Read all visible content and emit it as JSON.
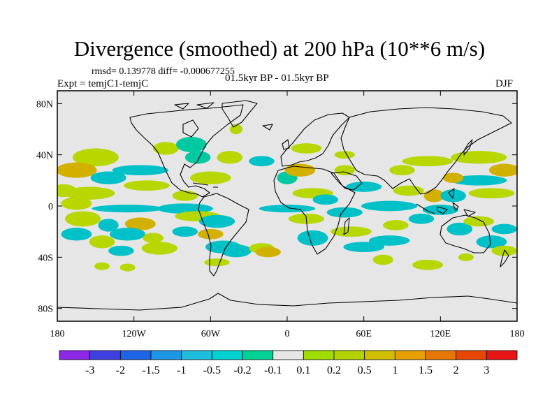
{
  "title": "Divergence (smoothed) at 200 hPa (10**6 m/s)",
  "stats": "rmsd= 0.139778  diff= -0.000677255",
  "experiment": "Expt = temjC1-temjC",
  "period": "01.5kyr BP - 01.5kyr BP",
  "season": "DJF",
  "map": {
    "projection": "cylindrical-equidistant",
    "lon_range": [
      -180,
      180
    ],
    "lat_range": [
      -90,
      90
    ],
    "background_color": "#e6e6e6",
    "lat_ticks": [
      {
        "value": 80,
        "label": "80N"
      },
      {
        "value": 40,
        "label": "40N"
      },
      {
        "value": 0,
        "label": "0"
      },
      {
        "value": -40,
        "label": "40S"
      },
      {
        "value": -80,
        "label": "80S"
      }
    ],
    "lon_ticks": [
      {
        "value": -180,
        "label": "180"
      },
      {
        "value": -120,
        "label": "120W"
      },
      {
        "value": -60,
        "label": "60W"
      },
      {
        "value": 0,
        "label": "0"
      },
      {
        "value": 60,
        "label": "60E"
      },
      {
        "value": 120,
        "label": "120E"
      },
      {
        "value": 180,
        "label": "180"
      }
    ],
    "anomalies": [
      {
        "lon": -150,
        "lat": 38,
        "rlon": 18,
        "rlat": 7,
        "color": "#b8d600"
      },
      {
        "lon": -165,
        "lat": 28,
        "rlon": 16,
        "rlat": 6,
        "color": "#d2b000"
      },
      {
        "lon": -175,
        "lat": 12,
        "rlon": 10,
        "rlat": 5,
        "color": "#b8d600"
      },
      {
        "lon": -140,
        "lat": 22,
        "rlon": 14,
        "rlat": 5,
        "color": "#00c0c8"
      },
      {
        "lon": -115,
        "lat": 28,
        "rlon": 22,
        "rlat": 4,
        "color": "#00c0c8"
      },
      {
        "lon": -155,
        "lat": 10,
        "rlon": 20,
        "rlat": 5,
        "color": "#b8d600"
      },
      {
        "lon": -110,
        "lat": 16,
        "rlon": 18,
        "rlat": 4,
        "color": "#b8d600"
      },
      {
        "lon": -165,
        "lat": 2,
        "rlon": 12,
        "rlat": 5,
        "color": "#b8d600"
      },
      {
        "lon": -125,
        "lat": -2,
        "rlon": 28,
        "rlat": 3,
        "color": "#00c0c8"
      },
      {
        "lon": -160,
        "lat": -10,
        "rlon": 14,
        "rlat": 6,
        "color": "#b8d600"
      },
      {
        "lon": -140,
        "lat": -15,
        "rlon": 8,
        "rlat": 5,
        "color": "#00c0c8"
      },
      {
        "lon": -115,
        "lat": -14,
        "rlon": 12,
        "rlat": 5,
        "color": "#d2b000"
      },
      {
        "lon": -165,
        "lat": -22,
        "rlon": 12,
        "rlat": 5,
        "color": "#00c0c8"
      },
      {
        "lon": -125,
        "lat": -22,
        "rlon": 14,
        "rlat": 5,
        "color": "#00c0c8"
      },
      {
        "lon": -145,
        "lat": -28,
        "rlon": 10,
        "rlat": 5,
        "color": "#b8d600"
      },
      {
        "lon": -105,
        "lat": -25,
        "rlon": 8,
        "rlat": 4,
        "color": "#b8d600"
      },
      {
        "lon": -130,
        "lat": -35,
        "rlon": 10,
        "rlat": 4,
        "color": "#00c0c8"
      },
      {
        "lon": -100,
        "lat": -33,
        "rlon": 14,
        "rlat": 5,
        "color": "#b8d600"
      },
      {
        "lon": -145,
        "lat": -47,
        "rlon": 6,
        "rlat": 3,
        "color": "#b8d600"
      },
      {
        "lon": -125,
        "lat": -48,
        "rlon": 6,
        "rlat": 3,
        "color": "#b8d600"
      },
      {
        "lon": -95,
        "lat": 45,
        "rlon": 10,
        "rlat": 5,
        "color": "#b8d600"
      },
      {
        "lon": -75,
        "lat": 48,
        "rlon": 12,
        "rlat": 6,
        "color": "#00c8a0"
      },
      {
        "lon": -70,
        "lat": 38,
        "rlon": 10,
        "rlat": 5,
        "color": "#00c8a0"
      },
      {
        "lon": -40,
        "lat": 60,
        "rlon": 5,
        "rlat": 4,
        "color": "#b8d600"
      },
      {
        "lon": -45,
        "lat": 38,
        "rlon": 10,
        "rlat": 5,
        "color": "#b8d600"
      },
      {
        "lon": -60,
        "lat": 22,
        "rlon": 16,
        "rlat": 5,
        "color": "#b8d600"
      },
      {
        "lon": -80,
        "lat": 8,
        "rlon": 10,
        "rlat": 4,
        "color": "#b8d600"
      },
      {
        "lon": -80,
        "lat": -2,
        "rlon": 22,
        "rlat": 4,
        "color": "#00c0c8"
      },
      {
        "lon": -70,
        "lat": -8,
        "rlon": 18,
        "rlat": 4,
        "color": "#b8d600"
      },
      {
        "lon": -55,
        "lat": -12,
        "rlon": 14,
        "rlat": 5,
        "color": "#00c0c8"
      },
      {
        "lon": -80,
        "lat": -20,
        "rlon": 10,
        "rlat": 4,
        "color": "#00c0c8"
      },
      {
        "lon": -60,
        "lat": -22,
        "rlon": 10,
        "rlat": 4,
        "color": "#d2b000"
      },
      {
        "lon": -50,
        "lat": -32,
        "rlon": 14,
        "rlat": 5,
        "color": "#00c0c8"
      },
      {
        "lon": -40,
        "lat": -35,
        "rlon": 12,
        "rlat": 5,
        "color": "#00c0c8"
      },
      {
        "lon": -20,
        "lat": -33,
        "rlon": 10,
        "rlat": 4,
        "color": "#b8d600"
      },
      {
        "lon": -55,
        "lat": -44,
        "rlon": 10,
        "rlat": 3,
        "color": "#b8d600"
      },
      {
        "lon": -15,
        "lat": -36,
        "rlon": 10,
        "rlat": 4,
        "color": "#d2b000"
      },
      {
        "lon": -20,
        "lat": 35,
        "rlon": 10,
        "rlat": 4,
        "color": "#00c0c8"
      },
      {
        "lon": 0,
        "lat": 22,
        "rlon": 8,
        "rlat": 5,
        "color": "#00c8a0"
      },
      {
        "lon": 10,
        "lat": 28,
        "rlon": 12,
        "rlat": 5,
        "color": "#d2b000"
      },
      {
        "lon": 45,
        "lat": 28,
        "rlon": 8,
        "rlat": 4,
        "color": "#b8d600"
      },
      {
        "lon": 15,
        "lat": 45,
        "rlon": 12,
        "rlat": 4,
        "color": "#b8d600"
      },
      {
        "lon": 45,
        "lat": 40,
        "rlon": 8,
        "rlat": 3,
        "color": "#b8d600"
      },
      {
        "lon": 20,
        "lat": 10,
        "rlon": 16,
        "rlat": 4,
        "color": "#b8d600"
      },
      {
        "lon": 0,
        "lat": -2,
        "rlon": 22,
        "rlat": 3,
        "color": "#00c0c8"
      },
      {
        "lon": 30,
        "lat": 5,
        "rlon": 10,
        "rlat": 4,
        "color": "#00c0c8"
      },
      {
        "lon": 60,
        "lat": 15,
        "rlon": 14,
        "rlat": 4,
        "color": "#00c0c8"
      },
      {
        "lon": 45,
        "lat": -5,
        "rlon": 14,
        "rlat": 4,
        "color": "#00c0c8"
      },
      {
        "lon": 15,
        "lat": -10,
        "rlon": 14,
        "rlat": 4,
        "color": "#b8d600"
      },
      {
        "lon": 20,
        "lat": -25,
        "rlon": 12,
        "rlat": 6,
        "color": "#00c0c8"
      },
      {
        "lon": 50,
        "lat": -20,
        "rlon": 16,
        "rlat": 4,
        "color": "#b8d600"
      },
      {
        "lon": 60,
        "lat": -32,
        "rlon": 16,
        "rlat": 4,
        "color": "#00c0c8"
      },
      {
        "lon": 80,
        "lat": -27,
        "rlon": 16,
        "rlat": 4,
        "color": "#00c0c8"
      },
      {
        "lon": 85,
        "lat": -15,
        "rlon": 10,
        "rlat": 4,
        "color": "#b8d600"
      },
      {
        "lon": 75,
        "lat": -42,
        "rlon": 8,
        "rlat": 4,
        "color": "#b8d600"
      },
      {
        "lon": 110,
        "lat": -46,
        "rlon": 12,
        "rlat": 4,
        "color": "#b8d600"
      },
      {
        "lon": 105,
        "lat": -10,
        "rlon": 10,
        "rlat": 4,
        "color": "#00c0c8"
      },
      {
        "lon": 80,
        "lat": 0,
        "rlon": 22,
        "rlat": 4,
        "color": "#00c0c8"
      },
      {
        "lon": 95,
        "lat": 12,
        "rlon": 12,
        "rlat": 4,
        "color": "#b8d600"
      },
      {
        "lon": 115,
        "lat": 8,
        "rlon": 8,
        "rlat": 5,
        "color": "#d2b000"
      },
      {
        "lon": 130,
        "lat": 8,
        "rlon": 10,
        "rlat": 5,
        "color": "#00c0c8"
      },
      {
        "lon": 120,
        "lat": -3,
        "rlon": 14,
        "rlat": 4,
        "color": "#00c0c8"
      },
      {
        "lon": 135,
        "lat": -18,
        "rlon": 10,
        "rlat": 5,
        "color": "#00c0c8"
      },
      {
        "lon": 150,
        "lat": -12,
        "rlon": 12,
        "rlat": 4,
        "color": "#b8d600"
      },
      {
        "lon": 160,
        "lat": -28,
        "rlon": 12,
        "rlat": 5,
        "color": "#00c0c8"
      },
      {
        "lon": 170,
        "lat": -18,
        "rlon": 10,
        "rlat": 4,
        "color": "#00c0c8"
      },
      {
        "lon": 170,
        "lat": -35,
        "rlon": 10,
        "rlat": 4,
        "color": "#b8d600"
      },
      {
        "lon": 140,
        "lat": -40,
        "rlon": 6,
        "rlat": 3,
        "color": "#b8d600"
      },
      {
        "lon": 110,
        "lat": 35,
        "rlon": 20,
        "rlat": 4,
        "color": "#b8d600"
      },
      {
        "lon": 150,
        "lat": 38,
        "rlon": 22,
        "rlat": 5,
        "color": "#b8d600"
      },
      {
        "lon": 170,
        "lat": 28,
        "rlon": 12,
        "rlat": 5,
        "color": "#d2b000"
      },
      {
        "lon": 150,
        "lat": 20,
        "rlon": 22,
        "rlat": 4,
        "color": "#00c0c8"
      },
      {
        "lon": 160,
        "lat": 10,
        "rlon": 18,
        "rlat": 4,
        "color": "#b8d600"
      },
      {
        "lon": 90,
        "lat": 28,
        "rlon": 10,
        "rlat": 4,
        "color": "#b8d600"
      },
      {
        "lon": 130,
        "lat": 22,
        "rlon": 8,
        "rlat": 4,
        "color": "#d2b000"
      }
    ]
  },
  "colorbar": {
    "colors": [
      "#8c28e6",
      "#4040e0",
      "#1e64e6",
      "#1e96e6",
      "#1ebedc",
      "#00d2d2",
      "#00d296",
      "#e6e6e6",
      "#a0dc00",
      "#b4d200",
      "#d2be00",
      "#e6a000",
      "#e67800",
      "#e64600",
      "#e61414"
    ],
    "labels": [
      "-3",
      "-2",
      "-1.5",
      "-1",
      "-0.5",
      "-0.2",
      "-0.1",
      "0.1",
      "0.2",
      "0.5",
      "1",
      "1.5",
      "2",
      "3"
    ]
  }
}
